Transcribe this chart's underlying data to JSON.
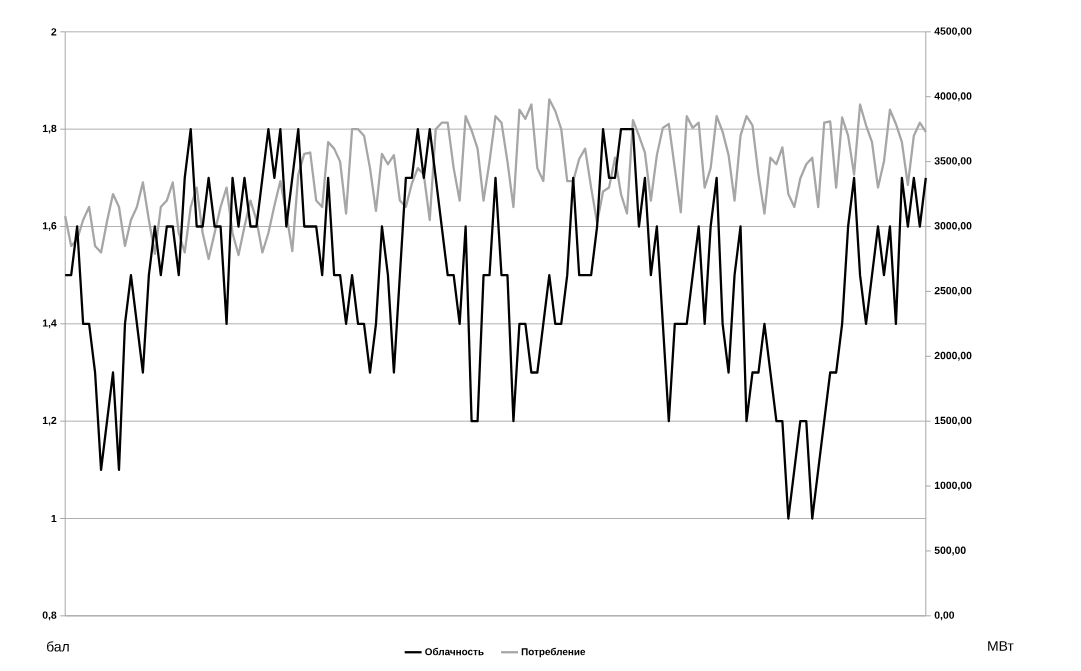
{
  "chart_data": {
    "type": "line",
    "ylabel": "бал",
    "y2label": "МВт",
    "categories": [
      null,
      null,
      null,
      null,
      null,
      null,
      null,
      null,
      null,
      null,
      null,
      null,
      null,
      null,
      null,
      null,
      null,
      null,
      null,
      null,
      null,
      null,
      null,
      null,
      null,
      null,
      null,
      null,
      null,
      null,
      null,
      null,
      null,
      null,
      null,
      null,
      null,
      null,
      null,
      null,
      null,
      null,
      null,
      null,
      null,
      null,
      null,
      null,
      null,
      null,
      null,
      null,
      null,
      null,
      null,
      null,
      null,
      null,
      null,
      null,
      null,
      null,
      null,
      null,
      null,
      null,
      null,
      null,
      null,
      null,
      null,
      null,
      null,
      null,
      null,
      null,
      null,
      null,
      null,
      null,
      null,
      null,
      null,
      null,
      null,
      null,
      null,
      null,
      null,
      null,
      null,
      null,
      null,
      null,
      null,
      null,
      null,
      null,
      null,
      null,
      null,
      null,
      null,
      null,
      null,
      null,
      null,
      null,
      null,
      null,
      null,
      null,
      null,
      null,
      null,
      null,
      null,
      null,
      null,
      null,
      null,
      null,
      null,
      null,
      null,
      null,
      null,
      null,
      null,
      null,
      null,
      null,
      null,
      null,
      null,
      null,
      null,
      null,
      null,
      null,
      null,
      null,
      null,
      null,
      null
    ],
    "ylim": [
      0.8,
      2
    ],
    "yticks": [
      {
        "value": 0.8,
        "label": "0,8"
      },
      {
        "value": 1,
        "label": "1"
      },
      {
        "value": 1.2,
        "label": "1,2"
      },
      {
        "value": 1.4,
        "label": "1,4"
      },
      {
        "value": 1.6,
        "label": "1,6"
      },
      {
        "value": 1.8,
        "label": "1,8"
      },
      {
        "value": 2,
        "label": "2"
      }
    ],
    "y2lim": [
      0,
      4500
    ],
    "y2ticks": [
      {
        "value": 0,
        "label": "0,00"
      },
      {
        "value": 500,
        "label": "500,00"
      },
      {
        "value": 1000,
        "label": "1000,00"
      },
      {
        "value": 1500,
        "label": "1500,00"
      },
      {
        "value": 2000,
        "label": "2000,00"
      },
      {
        "value": 2500,
        "label": "2500,00"
      },
      {
        "value": 3000,
        "label": "3000,00"
      },
      {
        "value": 3500,
        "label": "3500,00"
      },
      {
        "value": 4000,
        "label": "4000,00"
      },
      {
        "value": 4500,
        "label": "4500,00"
      }
    ],
    "grid": "y",
    "legend": "bottom",
    "series": [
      {
        "name": "Облачность",
        "color": "#000000",
        "values": [
          1.5,
          1.5,
          1.6,
          1.4,
          1.4,
          1.3,
          1.1,
          1.2,
          1.3,
          1.1,
          1.4,
          1.5,
          1.4,
          1.3,
          1.5,
          1.6,
          1.5,
          1.6,
          1.6,
          1.5,
          1.7,
          1.8,
          1.6,
          1.6,
          1.7,
          1.6,
          1.6,
          1.4,
          1.7,
          1.6,
          1.7,
          1.6,
          1.6,
          1.7,
          1.8,
          1.7,
          1.8,
          1.6,
          1.7,
          1.8,
          1.6,
          1.6,
          1.6,
          1.5,
          1.7,
          1.5,
          1.5,
          1.4,
          1.5,
          1.4,
          1.4,
          1.3,
          1.4,
          1.6,
          1.5,
          1.3,
          1.5,
          1.7,
          1.7,
          1.8,
          1.7,
          1.8,
          1.7,
          1.6,
          1.5,
          1.5,
          1.4,
          1.6,
          1.2,
          1.2,
          1.5,
          1.5,
          1.7,
          1.5,
          1.5,
          1.2,
          1.4,
          1.4,
          1.3,
          1.3,
          1.4,
          1.5,
          1.4,
          1.4,
          1.5,
          1.7,
          1.5,
          1.5,
          1.5,
          1.6,
          1.8,
          1.7,
          1.7,
          1.8,
          1.8,
          1.8,
          1.6,
          1.7,
          1.5,
          1.6,
          1.4,
          1.2,
          1.4,
          1.4,
          1.4,
          1.5,
          1.6,
          1.4,
          1.6,
          1.7,
          1.4,
          1.3,
          1.5,
          1.6,
          1.2,
          1.3,
          1.3,
          1.4,
          1.3,
          1.2,
          1.2,
          1.0,
          1.1,
          1.2,
          1.2,
          1.0,
          1.1,
          1.2,
          1.3,
          1.3,
          1.4,
          1.6,
          1.7,
          1.5,
          1.4,
          1.5,
          1.6,
          1.5,
          1.6,
          1.4,
          1.7,
          1.6,
          1.7,
          1.6,
          1.7
        ]
      },
      {
        "name": "Потребление",
        "color": "#a6a6a6",
        "axis": "y2",
        "values": [
          3080,
          2850,
          2900,
          3050,
          3150,
          2850,
          2800,
          3040,
          3250,
          3150,
          2850,
          3050,
          3150,
          3340,
          3050,
          2790,
          3150,
          3200,
          3340,
          2950,
          2800,
          3150,
          3300,
          2950,
          2750,
          2950,
          3150,
          3300,
          2950,
          2780,
          3000,
          3200,
          3050,
          2800,
          2950,
          3160,
          3350,
          3100,
          2810,
          3400,
          3560,
          3570,
          3200,
          3150,
          3650,
          3600,
          3500,
          3100,
          3750,
          3750,
          3700,
          3450,
          3120,
          3560,
          3480,
          3550,
          3200,
          3150,
          3330,
          3450,
          3400,
          3050,
          3750,
          3800,
          3800,
          3450,
          3200,
          3850,
          3740,
          3600,
          3200,
          3500,
          3850,
          3800,
          3500,
          3150,
          3900,
          3830,
          3940,
          3450,
          3350,
          3980,
          3890,
          3750,
          3350,
          3350,
          3520,
          3600,
          3300,
          3030,
          3270,
          3300,
          3530,
          3250,
          3100,
          3820,
          3700,
          3570,
          3200,
          3550,
          3760,
          3790,
          3450,
          3110,
          3850,
          3760,
          3800,
          3300,
          3450,
          3850,
          3730,
          3550,
          3200,
          3700,
          3850,
          3780,
          3400,
          3100,
          3530,
          3480,
          3610,
          3250,
          3150,
          3370,
          3480,
          3530,
          3150,
          3800,
          3810,
          3300,
          3840,
          3700,
          3400,
          3940,
          3780,
          3650,
          3300,
          3500,
          3900,
          3790,
          3650,
          3320,
          3700,
          3800,
          3730
        ]
      }
    ]
  }
}
